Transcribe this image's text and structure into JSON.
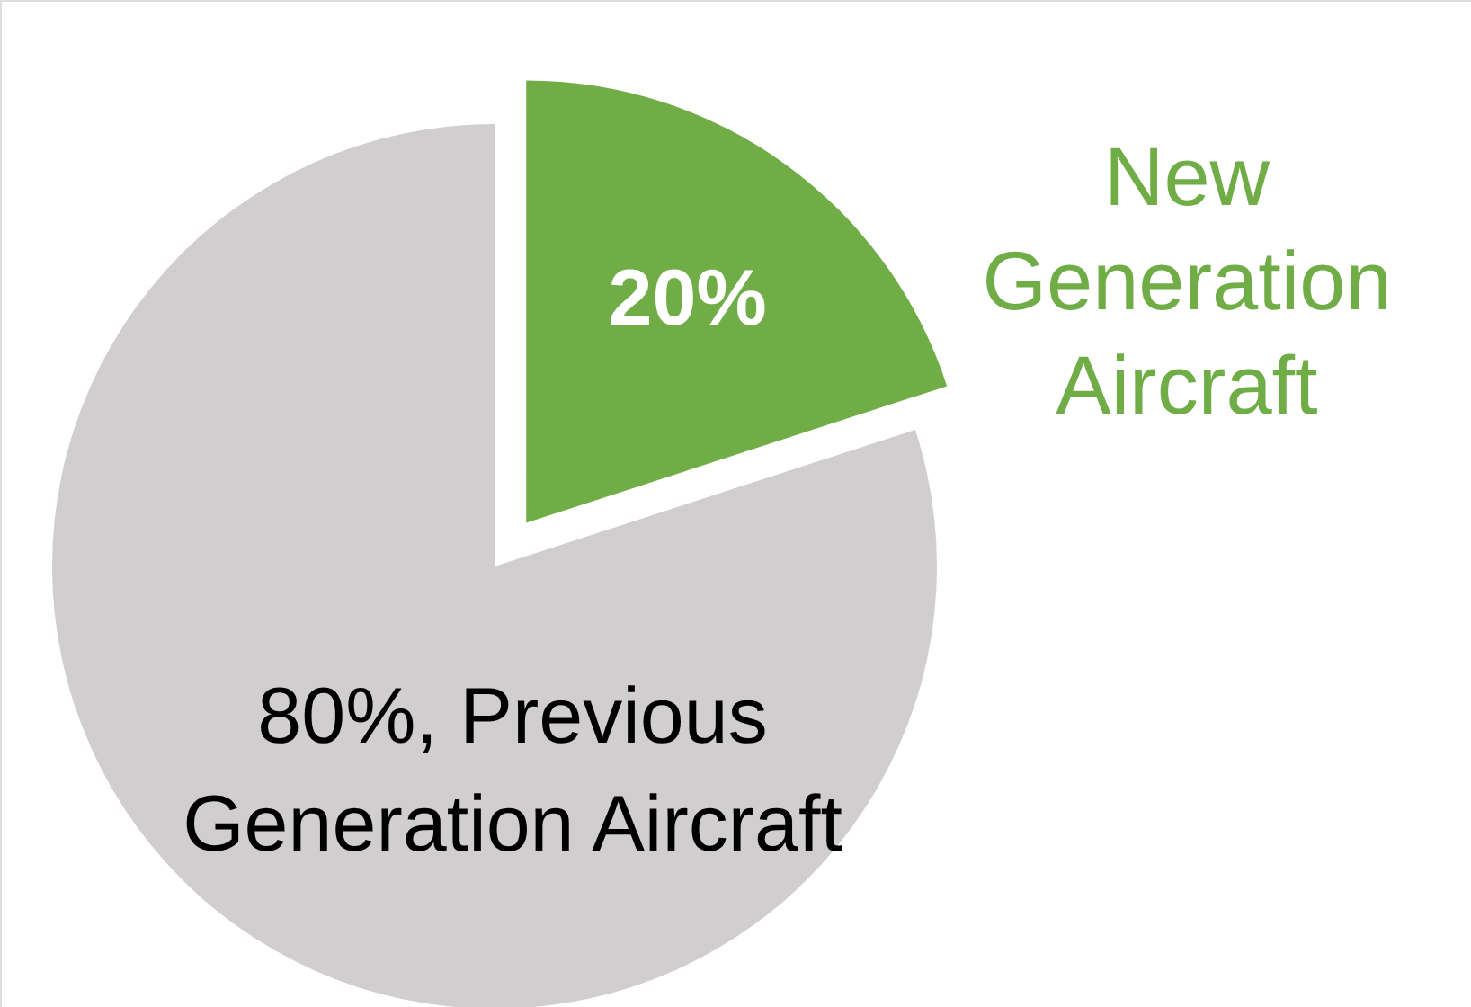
{
  "chart_data": {
    "type": "pie",
    "categories": [
      "New Generation Aircraft",
      "Previous Generation Aircraft"
    ],
    "values": [
      20,
      80
    ],
    "colors": [
      "#70ad47",
      "#d0cece"
    ],
    "value_labels": [
      "20%",
      "80%"
    ]
  }
}
